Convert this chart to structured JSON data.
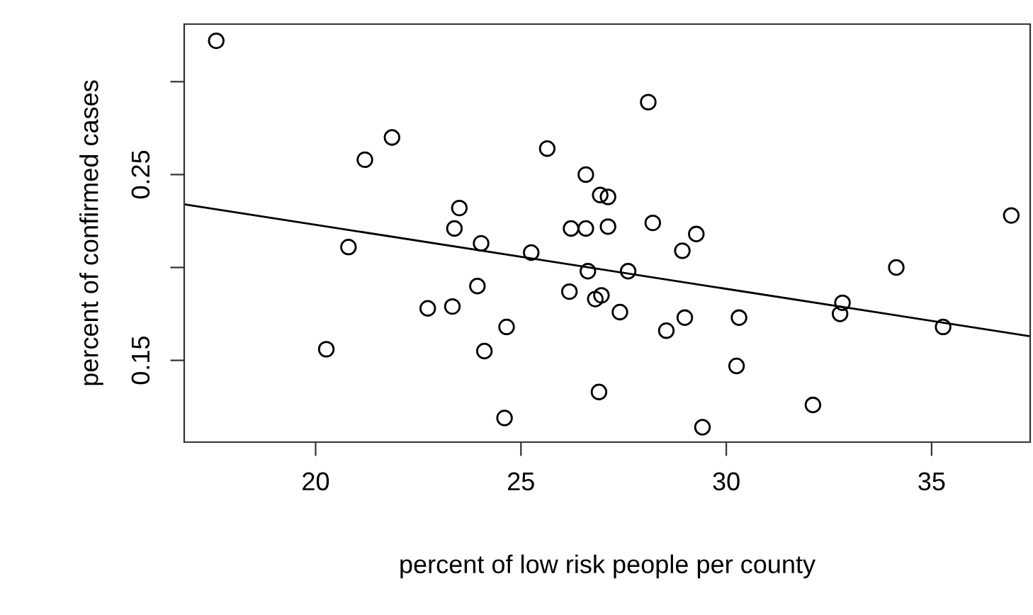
{
  "chart_data": {
    "type": "scatter",
    "xlabel": "percent of low risk people per county",
    "ylabel": "percent of confirmed cases",
    "xlim": [
      16.8,
      37.4
    ],
    "ylim": [
      0.106,
      0.331
    ],
    "xticks": [
      20,
      25,
      30,
      35
    ],
    "yticks": [
      0.15,
      {
        "value": 0.2,
        "label": null
      },
      0.25,
      {
        "value": 0.3,
        "label": null
      }
    ],
    "grid": false,
    "series": [
      {
        "color": "#000000",
        "marker": "circle",
        "x": [
          17.58,
          21.86,
          21.2,
          25.64,
          26.58,
          26.93,
          27.12,
          23.5,
          23.38,
          26.22,
          26.58,
          27.12,
          24.03,
          25.25,
          20.8,
          26.63,
          23.94,
          26.18,
          26.81,
          26.96,
          22.73,
          23.33,
          24.65,
          20.26,
          24.11,
          26.9,
          24.6,
          28.1,
          28.21,
          29.27,
          28.93,
          27.61,
          27.41,
          28.99,
          28.54,
          30.31,
          30.25,
          29.42,
          32.11,
          34.14,
          32.83,
          32.77,
          35.28,
          36.94
        ],
        "values": [
          0.322,
          0.27,
          0.258,
          0.264,
          0.25,
          0.239,
          0.238,
          0.232,
          0.221,
          0.221,
          0.221,
          0.222,
          0.213,
          0.208,
          0.211,
          0.198,
          0.19,
          0.187,
          0.183,
          0.185,
          0.178,
          0.179,
          0.168,
          0.156,
          0.155,
          0.133,
          0.119,
          0.289,
          0.224,
          0.218,
          0.209,
          0.198,
          0.176,
          0.173,
          0.166,
          0.173,
          0.147,
          0.114,
          0.126,
          0.2,
          0.181,
          0.175,
          0.168,
          0.228
        ]
      },
      {
        "type": "line",
        "color": "#000000",
        "marker": "none",
        "line_style": "solid",
        "x": [
          16.8,
          37.4
        ],
        "values": [
          0.234,
          0.163
        ]
      }
    ]
  }
}
